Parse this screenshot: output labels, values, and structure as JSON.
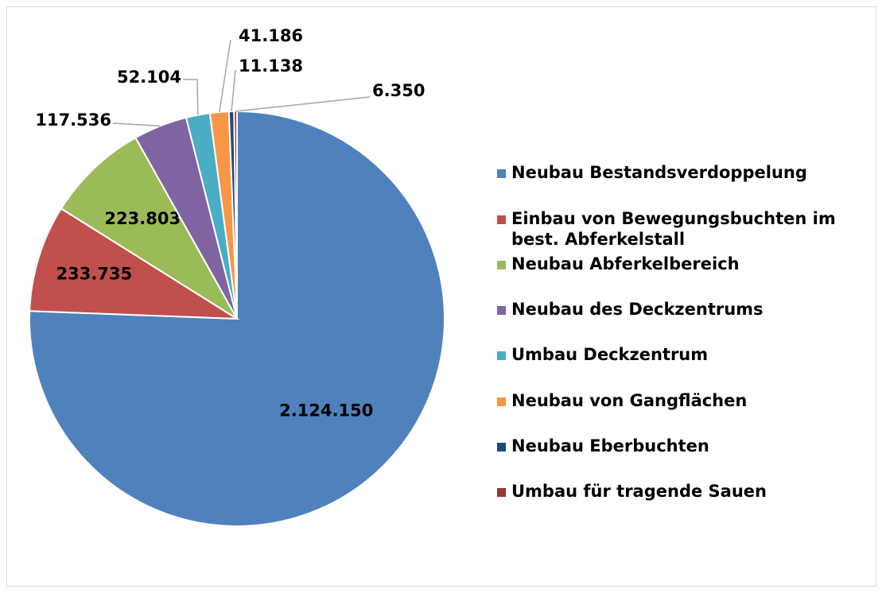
{
  "chart_data": {
    "type": "pie",
    "categories": [
      "Neubau Bestandsverdoppelung",
      "Einbau von Bewegungsbuchten im best. Abferkelstall",
      "Neubau Abferkelbereich",
      "Neubau des Deckzentrums",
      "Umbau Deckzentrum",
      "Neubau von Gangflächen",
      "Neubau Eberbuchten",
      "Umbau für tragende Sauen"
    ],
    "values": [
      2124150,
      233735,
      223803,
      117536,
      52104,
      41186,
      11138,
      6350
    ],
    "value_labels": [
      "2.124.150",
      "233.735",
      "223.803",
      "117.536",
      "52.104",
      "41.186",
      "11.138",
      "6.350"
    ],
    "colors": [
      "#4f81bd",
      "#c0504d",
      "#9bbb59",
      "#8064a2",
      "#4bacc6",
      "#f79646",
      "#1f497d",
      "#943634"
    ],
    "legend": "right"
  }
}
